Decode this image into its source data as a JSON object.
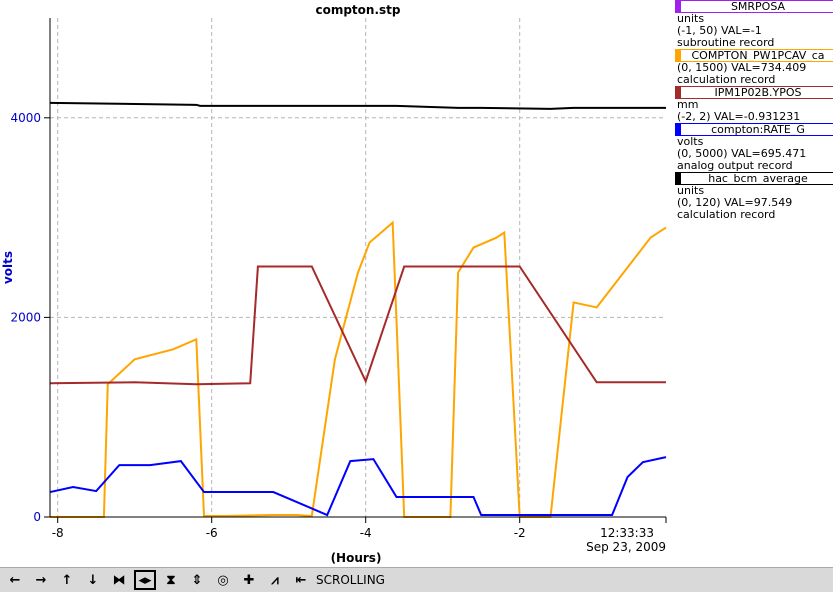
{
  "chart_data": {
    "type": "line",
    "title": "compton.stp",
    "xlabel": "(Hours)",
    "ylabel": "volts",
    "xlim": [
      -8.1,
      -0.1
    ],
    "ylim": [
      0,
      5000
    ],
    "x_ticks": [
      -8,
      -6,
      -4,
      -2
    ],
    "x_tick_labels": [
      "-8",
      "-6",
      "-4",
      "-2"
    ],
    "y_ticks": [
      0,
      2000,
      4000
    ],
    "y_tick_labels": [
      "0",
      "2000",
      "4000"
    ],
    "time_label": "12:33:33",
    "date_label": "Sep 23, 2009",
    "grid": true,
    "series": [
      {
        "name": "COMPTON_PW1PCAV_ca",
        "color": "#ffa500",
        "x": [
          -8.1,
          -7.4,
          -7.35,
          -7.0,
          -6.5,
          -6.2,
          -6.1,
          -5.8,
          -5.2,
          -4.9,
          -4.7,
          -4.4,
          -4.1,
          -3.95,
          -3.65,
          -3.5,
          -2.9,
          -2.8,
          -2.6,
          -2.3,
          -2.2,
          -2.0,
          -1.6,
          -1.3,
          -1.0,
          -0.6,
          -0.3,
          -0.1
        ],
        "y": [
          0,
          0,
          1330,
          1580,
          1680,
          1780,
          10,
          10,
          20,
          20,
          10,
          1580,
          2450,
          2750,
          2950,
          0,
          0,
          2450,
          2700,
          2800,
          2850,
          0,
          0,
          2150,
          2100,
          2500,
          2800,
          2900
        ]
      },
      {
        "name": "IPM1P02B.YPOS",
        "color": "#a52a2a",
        "x": [
          -8.1,
          -7.0,
          -6.2,
          -5.5,
          -5.4,
          -4.7,
          -4.0,
          -3.5,
          -2.9,
          -2.0,
          -1.0,
          -0.1
        ],
        "y": [
          1340,
          1350,
          1330,
          1340,
          2510,
          2510,
          1360,
          2510,
          2510,
          2510,
          1350,
          1350
        ]
      },
      {
        "name": "compton:RATE_G",
        "color": "#0000ff",
        "x": [
          -8.1,
          -7.8,
          -7.5,
          -7.2,
          -6.8,
          -6.4,
          -6.1,
          -5.9,
          -5.2,
          -4.5,
          -4.2,
          -3.9,
          -3.6,
          -3.5,
          -2.6,
          -2.5,
          -2.4,
          -0.8,
          -0.6,
          -0.4,
          -0.1
        ],
        "y": [
          250,
          300,
          260,
          520,
          520,
          560,
          250,
          250,
          250,
          20,
          560,
          580,
          200,
          200,
          200,
          20,
          20,
          20,
          400,
          550,
          600
        ]
      },
      {
        "name": "hac_bcm_average",
        "color": "#000000",
        "x": [
          -8.1,
          -6.2,
          -6.15,
          -4.0,
          -3.6,
          -2.8,
          -2.5,
          -1.6,
          -1.3,
          -0.1
        ],
        "y": [
          4150,
          4130,
          4120,
          4120,
          4120,
          4100,
          4100,
          4090,
          4100,
          4100
        ]
      }
    ]
  },
  "legend": [
    {
      "name": "SMRPOSA",
      "color": "#a020f0",
      "units": "units",
      "range": "(-1, 50) VAL=-1",
      "record": "subroutine record"
    },
    {
      "name": "COMPTON_PW1PCAV_ca",
      "color": "#ffa500",
      "units": "",
      "range": "(0, 1500) VAL=734.409",
      "record": "calculation record"
    },
    {
      "name": "IPM1P02B.YPOS",
      "color": "#a52a2a",
      "units": "mm",
      "range": "(-2, 2) VAL=-0.931231",
      "record": ""
    },
    {
      "name": "compton:RATE_G",
      "color": "#0000ff",
      "units": "volts",
      "range": "(0, 5000) VAL=695.471",
      "record": "analog output record"
    },
    {
      "name": "hac_bcm_average",
      "color": "#000000",
      "units": "units",
      "range": "(0, 120) VAL=97.549",
      "record": "calculation record"
    }
  ],
  "toolbar": {
    "icons": [
      "arrow-left-icon",
      "arrow-right-icon",
      "arrow-up-icon",
      "arrow-down-icon",
      "zoom-in-x-icon",
      "zoom-out-x-icon",
      "zoom-in-y-icon",
      "zoom-out-y-icon",
      "ring-icon",
      "plus-icon",
      "autoscale-icon",
      "back-icon"
    ],
    "glyphs": [
      "←",
      "→",
      "↑",
      "↓",
      "⧓",
      "◂▸",
      "⧗",
      "⇕",
      "◎",
      "✚",
      "⩘",
      "⇤"
    ],
    "mode": "SCROLLING"
  }
}
